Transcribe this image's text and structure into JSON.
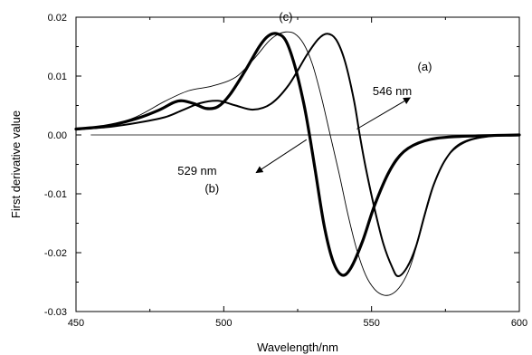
{
  "chart_data": {
    "type": "line",
    "title": "",
    "xlabel": "Wavelength/nm",
    "ylabel": "First derivative value",
    "xlim": [
      450,
      600
    ],
    "ylim": [
      -0.03,
      0.02
    ],
    "xticks": [
      450,
      500,
      550,
      600
    ],
    "xtick_labels": [
      "450",
      "500",
      "550",
      "600"
    ],
    "yticks": [
      -0.03,
      -0.02,
      -0.01,
      0.0,
      0.01,
      0.02
    ],
    "ytick_labels": [
      "-0.03",
      "-0.02",
      "-0.01",
      "0.00",
      "0.01",
      "0.02"
    ],
    "grid": false,
    "legend": "none",
    "zero_line": {
      "y": 0.0,
      "x_start": 455,
      "x_end": 600
    },
    "series": [
      {
        "label": "(a)",
        "stroke_weight": "medium",
        "points": [
          [
            450,
            0.001
          ],
          [
            460,
            0.0013
          ],
          [
            470,
            0.002
          ],
          [
            480,
            0.003
          ],
          [
            486,
            0.0042
          ],
          [
            492,
            0.0054
          ],
          [
            498,
            0.0058
          ],
          [
            504,
            0.005
          ],
          [
            510,
            0.0043
          ],
          [
            516,
            0.0053
          ],
          [
            522,
            0.0085
          ],
          [
            528,
            0.0135
          ],
          [
            532,
            0.0163
          ],
          [
            535,
            0.0172
          ],
          [
            538,
            0.0162
          ],
          [
            541,
            0.0125
          ],
          [
            544,
            0.006
          ],
          [
            546,
            0.0
          ],
          [
            548,
            -0.0055
          ],
          [
            551,
            -0.0125
          ],
          [
            554,
            -0.0185
          ],
          [
            557,
            -0.0225
          ],
          [
            559,
            -0.024
          ],
          [
            562,
            -0.0225
          ],
          [
            565,
            -0.019
          ],
          [
            568,
            -0.0135
          ],
          [
            571,
            -0.0085
          ],
          [
            575,
            -0.0042
          ],
          [
            580,
            -0.0015
          ],
          [
            588,
            -0.0003
          ],
          [
            600,
            0.0
          ]
        ]
      },
      {
        "label": "(b)",
        "stroke_weight": "heavy",
        "points": [
          [
            450,
            0.001
          ],
          [
            460,
            0.0015
          ],
          [
            470,
            0.0027
          ],
          [
            478,
            0.0042
          ],
          [
            483,
            0.0055
          ],
          [
            486,
            0.0058
          ],
          [
            490,
            0.0053
          ],
          [
            494,
            0.0045
          ],
          [
            498,
            0.0048
          ],
          [
            502,
            0.0068
          ],
          [
            507,
            0.0107
          ],
          [
            512,
            0.015
          ],
          [
            515,
            0.0168
          ],
          [
            518,
            0.0172
          ],
          [
            521,
            0.016
          ],
          [
            524,
            0.0118
          ],
          [
            527,
            0.0055
          ],
          [
            529,
            0.0
          ],
          [
            531,
            -0.0062
          ],
          [
            534,
            -0.0155
          ],
          [
            537,
            -0.0215
          ],
          [
            540,
            -0.0238
          ],
          [
            543,
            -0.0226
          ],
          [
            547,
            -0.018
          ],
          [
            551,
            -0.012
          ],
          [
            556,
            -0.0062
          ],
          [
            561,
            -0.0028
          ],
          [
            568,
            -0.001
          ],
          [
            578,
            -0.0003
          ],
          [
            600,
            0.0
          ]
        ]
      },
      {
        "label": "(c)",
        "stroke_weight": "thin",
        "points": [
          [
            450,
            0.0008
          ],
          [
            460,
            0.0015
          ],
          [
            470,
            0.003
          ],
          [
            480,
            0.0057
          ],
          [
            488,
            0.0075
          ],
          [
            496,
            0.0083
          ],
          [
            504,
            0.0098
          ],
          [
            510,
            0.0128
          ],
          [
            515,
            0.0158
          ],
          [
            518,
            0.017
          ],
          [
            521,
            0.0175
          ],
          [
            524,
            0.0172
          ],
          [
            527,
            0.0155
          ],
          [
            530,
            0.012
          ],
          [
            533,
            0.0065
          ],
          [
            536,
            0.0
          ],
          [
            539,
            -0.0065
          ],
          [
            542,
            -0.0135
          ],
          [
            545,
            -0.0195
          ],
          [
            548,
            -0.0238
          ],
          [
            551,
            -0.0262
          ],
          [
            554,
            -0.0272
          ],
          [
            557,
            -0.027
          ],
          [
            560,
            -0.0255
          ],
          [
            563,
            -0.0225
          ],
          [
            566,
            -0.0175
          ],
          [
            569,
            -0.012
          ],
          [
            572,
            -0.0072
          ],
          [
            576,
            -0.0035
          ],
          [
            582,
            -0.0012
          ],
          [
            590,
            -0.0003
          ],
          [
            600,
            0.0
          ]
        ]
      }
    ],
    "annotations": [
      {
        "text": "(c)",
        "at": [
          521,
          0.0194
        ]
      },
      {
        "text": "(a)",
        "at": [
          568,
          0.0109
        ]
      },
      {
        "text": "546 nm",
        "at": [
          557,
          0.0068
        ]
      },
      {
        "text": "529 nm",
        "at": [
          491,
          -0.0068
        ]
      },
      {
        "text": "(b)",
        "at": [
          496,
          -0.0098
        ]
      }
    ],
    "arrows": [
      {
        "from": [
          545,
          0.001
        ],
        "to": [
          563,
          0.0063
        ]
      },
      {
        "from": [
          528,
          -0.0008
        ],
        "to": [
          511,
          -0.0064
        ]
      }
    ]
  }
}
